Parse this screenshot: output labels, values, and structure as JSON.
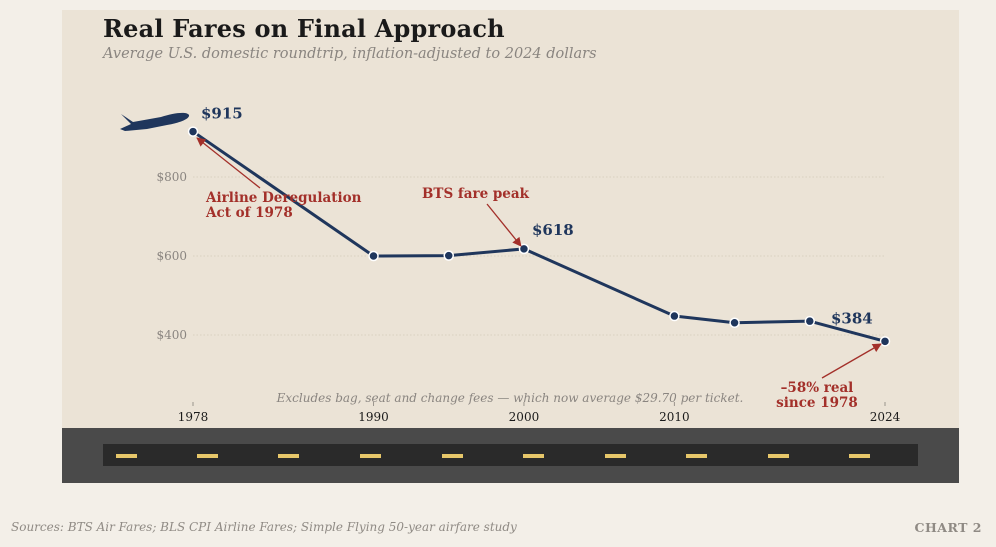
{
  "header": {
    "title": "Real Fares on Final Approach",
    "subtitle": "Average U.S. domestic roundtrip, inflation-adjusted to 2024 dollars"
  },
  "footer": {
    "sources": "Sources: BTS Air Fares; BLS CPI Airline Fares; Simple Flying 50-year airfare study",
    "chart_number": "CHART 2"
  },
  "chart_data": {
    "type": "line",
    "title": "Real Fares on Final Approach",
    "subtitle": "Average U.S. domestic roundtrip, inflation-adjusted to 2024 dollars",
    "xlabel": "",
    "ylabel": "",
    "x_ticks": [
      "1978",
      "1990",
      "2000",
      "2010",
      "2024"
    ],
    "y_ticks": [
      "$400",
      "$600",
      "$800"
    ],
    "xlim": [
      1978,
      2024
    ],
    "ylim": [
      300,
      915
    ],
    "grid": true,
    "series": [
      {
        "x": [
          1978,
          1990,
          1995,
          2000,
          2010,
          2014,
          2019,
          2024
        ],
        "y": [
          915,
          600,
          601,
          618,
          448,
          431,
          435,
          384
        ],
        "color": "#1f365c"
      }
    ],
    "point_labels": [
      {
        "x": 1978,
        "text": "$915"
      },
      {
        "x": 2000,
        "text": "$618"
      },
      {
        "x": 2024,
        "text": "$384"
      }
    ],
    "annotations": [
      {
        "lines": [
          "Airline Deregulation",
          "Act of 1978"
        ],
        "target_x": 1978
      },
      {
        "lines": [
          "BTS fare peak"
        ],
        "target_x": 2000
      },
      {
        "lines": [
          "–58% real",
          "since 1978"
        ],
        "target_x": 2024
      }
    ],
    "note": "Excludes bag, seat and change fees — which now average $29.70 per ticket.",
    "colors": {
      "line": "#1f365c",
      "annotation": "#a3302a",
      "gridline": "#d3cab9",
      "tick_text": "#8a8580"
    },
    "icon": "airplane-icon"
  }
}
